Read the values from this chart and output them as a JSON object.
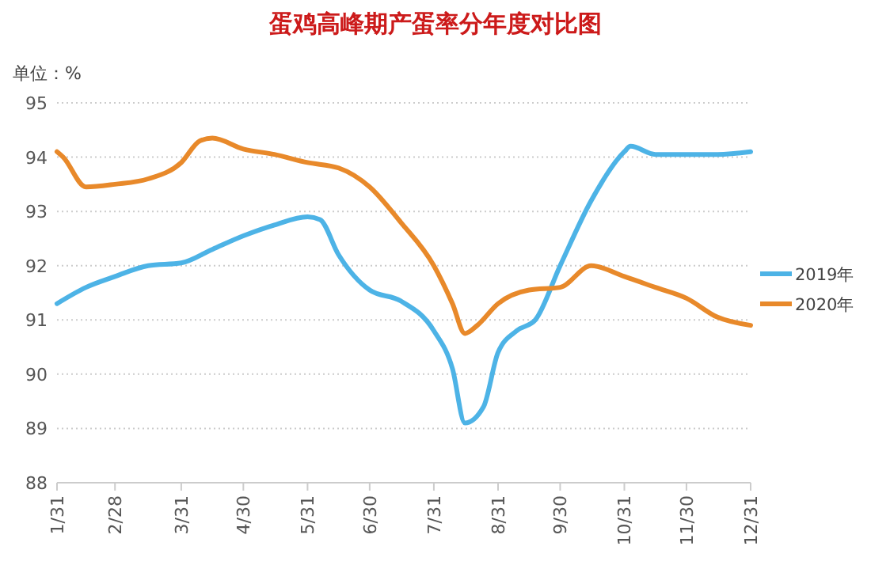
{
  "chart_data": {
    "type": "line",
    "title": "蛋鸡高峰期产蛋率分年度对比图",
    "ylabel": "单位：%",
    "xlim": [
      "--01-31",
      "--12-31"
    ],
    "xticks": [
      {
        "value": "--01-31",
        "label": "1/31"
      },
      {
        "value": "--02-28",
        "label": "2/28"
      },
      {
        "value": "--03-31",
        "label": "3/31"
      },
      {
        "value": "--04-30",
        "label": "4/30"
      },
      {
        "value": "--05-31",
        "label": "5/31"
      },
      {
        "value": "--06-30",
        "label": "6/30"
      },
      {
        "value": "--07-31",
        "label": "7/31"
      },
      {
        "value": "--08-31",
        "label": "8/31"
      },
      {
        "value": "--09-30",
        "label": "9/30"
      },
      {
        "value": "--10-31",
        "label": "10/31"
      },
      {
        "value": "--11-30",
        "label": "11/30"
      },
      {
        "value": "--12-31",
        "label": "12/31"
      }
    ],
    "ylim": [
      88,
      95
    ],
    "yticks": [
      88,
      89,
      90,
      91,
      92,
      93,
      94,
      95
    ],
    "grid": "y",
    "legend": "right",
    "line_style": "solid",
    "marker": "none",
    "series": [
      {
        "name": "2019年",
        "color": "#4db3e6",
        "x": [
          "--01-31",
          "--02-14",
          "--02-28",
          "--03-15",
          "--03-31",
          "--04-15",
          "--04-30",
          "--05-15",
          "--05-31",
          "--06-06",
          "--06-15",
          "--06-30",
          "--07-15",
          "--07-31",
          "--08-09",
          "--08-15",
          "--08-24",
          "--08-31",
          "--09-09",
          "--09-18",
          "--09-30",
          "--10-15",
          "--10-31",
          "--11-03",
          "--11-15",
          "--11-30",
          "--12-15",
          "--12-31"
        ],
        "values": [
          91.3,
          91.6,
          91.8,
          92.0,
          92.05,
          92.3,
          92.55,
          92.75,
          92.9,
          92.85,
          92.2,
          91.55,
          91.35,
          90.8,
          90.1,
          89.1,
          89.4,
          90.4,
          90.8,
          91.0,
          92.0,
          93.2,
          94.1,
          94.2,
          94.05,
          94.05,
          94.05,
          94.1
        ]
      },
      {
        "name": "2020年",
        "color": "#e8892a",
        "x": [
          "--01-31",
          "--02-03",
          "--02-14",
          "--02-28",
          "--03-15",
          "--03-31",
          "--04-09",
          "--04-15",
          "--04-30",
          "--05-15",
          "--05-31",
          "--06-15",
          "--06-30",
          "--07-15",
          "--07-31",
          "--08-09",
          "--08-15",
          "--08-21",
          "--08-31",
          "--09-15",
          "--09-30",
          "--10-15",
          "--10-31",
          "--11-15",
          "--11-30",
          "--12-15",
          "--12-31"
        ],
        "values": [
          94.1,
          94.0,
          93.45,
          93.5,
          93.6,
          93.9,
          94.3,
          94.35,
          94.15,
          94.05,
          93.9,
          93.8,
          93.45,
          92.8,
          92.0,
          91.3,
          90.75,
          90.9,
          91.3,
          91.55,
          91.6,
          92.0,
          91.8,
          91.6,
          91.4,
          91.05,
          90.9
        ]
      }
    ]
  }
}
